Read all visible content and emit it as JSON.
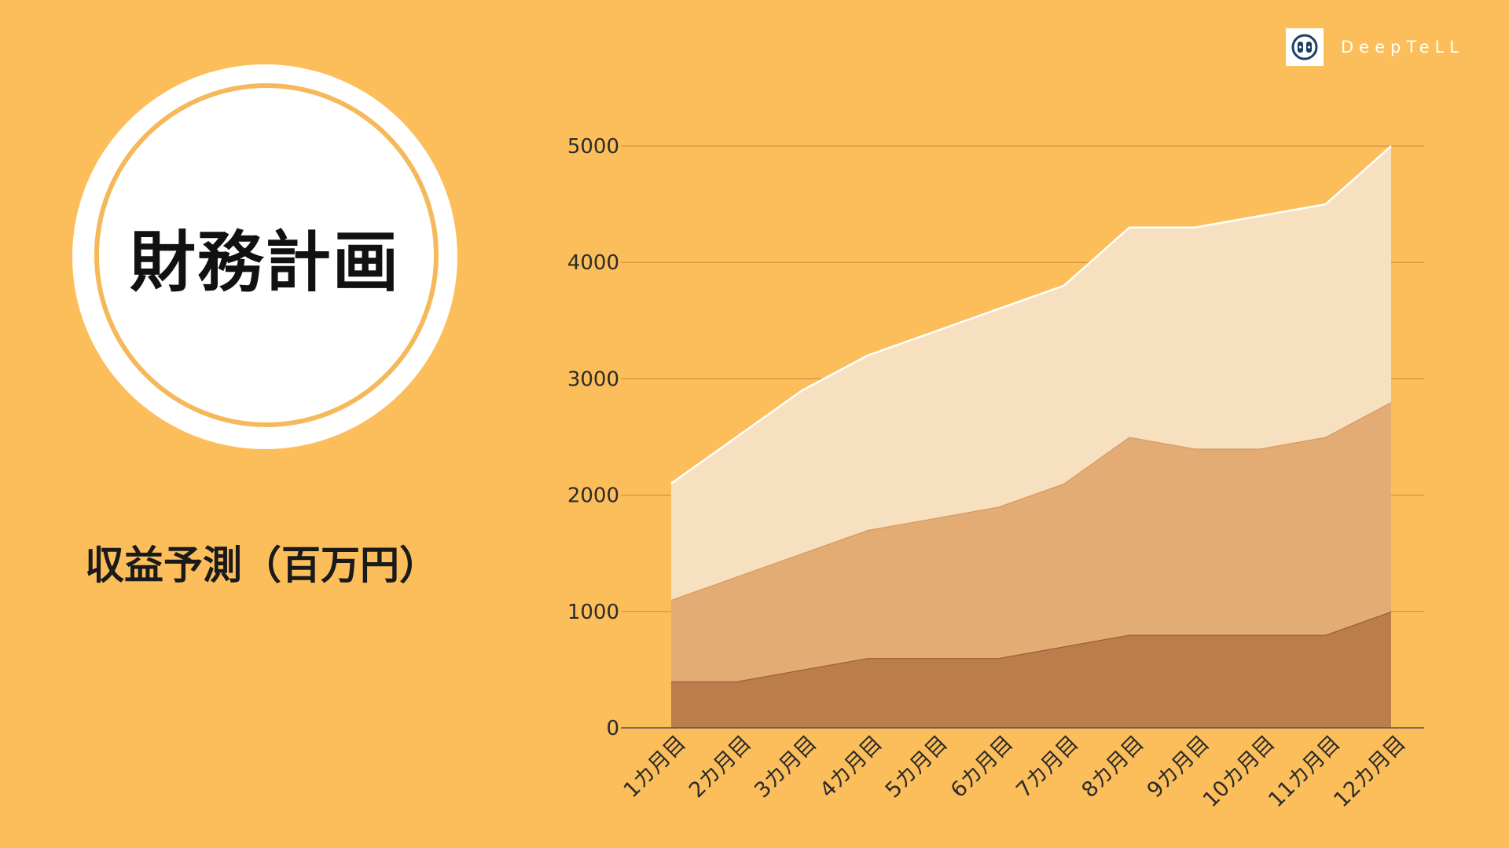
{
  "page": {
    "title": "財務計画",
    "subtitle": "収益予測（百万円）",
    "logo_text": "DeepTeLL",
    "logo_icon": "deeptell-logo-icon"
  },
  "colors": {
    "background": "#FCBE5B",
    "series": [
      "#BA7D4B",
      "#E3AC74",
      "#F7E0C0"
    ],
    "series_lines": [
      "#9E5F36",
      "#D59A62",
      "#FFFFFF"
    ],
    "gridline": "#C98A3A"
  },
  "chart_data": {
    "type": "area",
    "stacked": true,
    "title": "",
    "xlabel": "",
    "ylabel": "",
    "categories": [
      "1カ月目",
      "2カ月目",
      "3カ月目",
      "4カ月目",
      "5カ月目",
      "6カ月目",
      "7カ月目",
      "8カ月目",
      "9カ月目",
      "10カ月目",
      "11カ月目",
      "12カ月目"
    ],
    "series": [
      {
        "values": [
          400,
          400,
          500,
          600,
          600,
          600,
          700,
          800,
          800,
          800,
          800,
          1000
        ]
      },
      {
        "values": [
          700,
          900,
          1000,
          1100,
          1200,
          1300,
          1400,
          1700,
          1600,
          1600,
          1700,
          1800
        ]
      },
      {
        "values": [
          1000,
          1200,
          1400,
          1500,
          1600,
          1700,
          1700,
          1800,
          1900,
          2000,
          2000,
          2200
        ]
      }
    ],
    "ylim": [
      0,
      5000
    ],
    "yticks": [
      0,
      1000,
      2000,
      3000,
      4000,
      5000
    ],
    "grid": true,
    "legend": "none"
  }
}
